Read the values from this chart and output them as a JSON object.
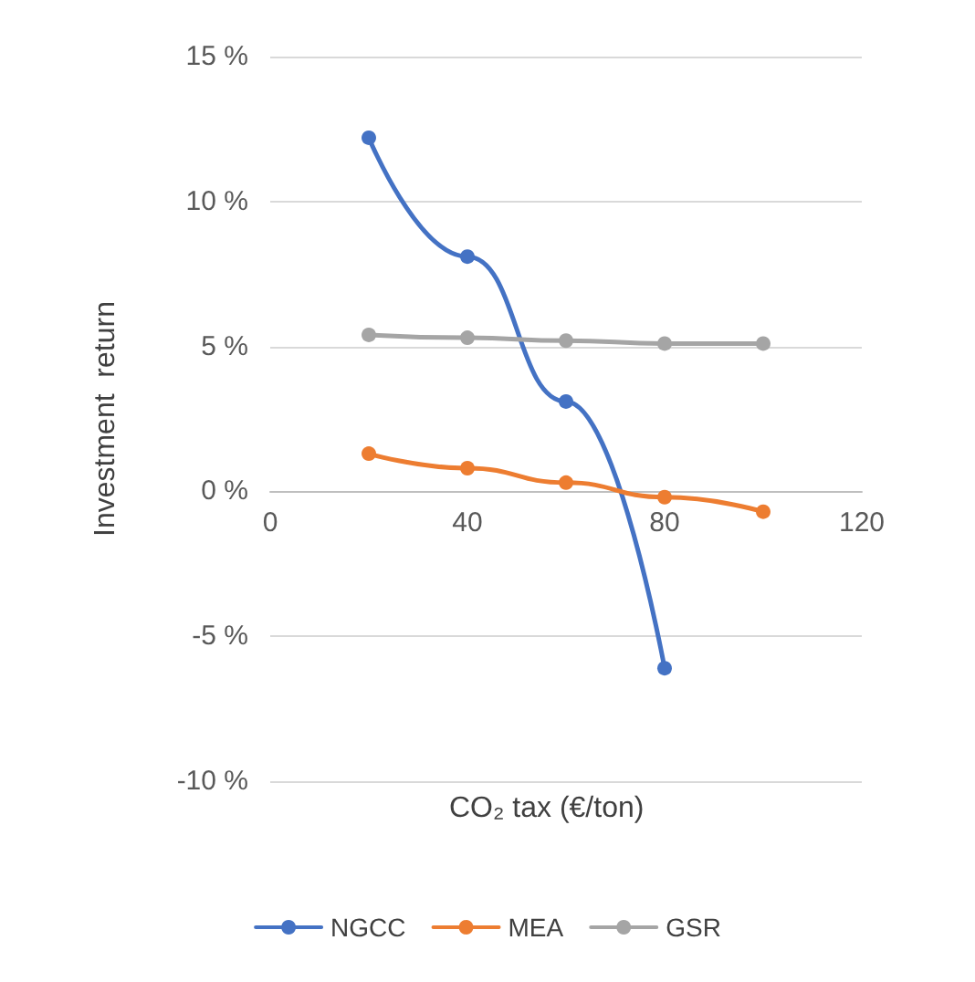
{
  "chart_data": {
    "type": "line",
    "xlabel": "CO₂ tax (€/ton)",
    "ylabel": "Investment  return",
    "x": [
      20,
      40,
      60,
      80,
      100
    ],
    "series": [
      {
        "name": "NGCC",
        "color": "#4472c4",
        "values": [
          12.2,
          8.1,
          3.1,
          -6.1,
          null
        ]
      },
      {
        "name": "MEA",
        "color": "#ed7d31",
        "values": [
          1.3,
          0.8,
          0.3,
          -0.2,
          -0.7
        ]
      },
      {
        "name": "GSR",
        "color": "#a5a5a5",
        "values": [
          5.4,
          5.3,
          5.2,
          5.1,
          5.1
        ]
      }
    ],
    "xlim": [
      0,
      120
    ],
    "xticks": [
      0,
      40,
      80,
      120
    ],
    "ylim": [
      -10,
      15
    ],
    "yticks": [
      {
        "value": -10,
        "label": "-10 %"
      },
      {
        "value": -5,
        "label": "-5 %"
      },
      {
        "value": 0,
        "label": "0 %"
      },
      {
        "value": 5,
        "label": "5 %"
      },
      {
        "value": 10,
        "label": "10 %"
      },
      {
        "value": 15,
        "label": "15 %"
      }
    ],
    "grid": "y",
    "legend": "bottom",
    "marker": "circle",
    "line_style": "solid"
  }
}
